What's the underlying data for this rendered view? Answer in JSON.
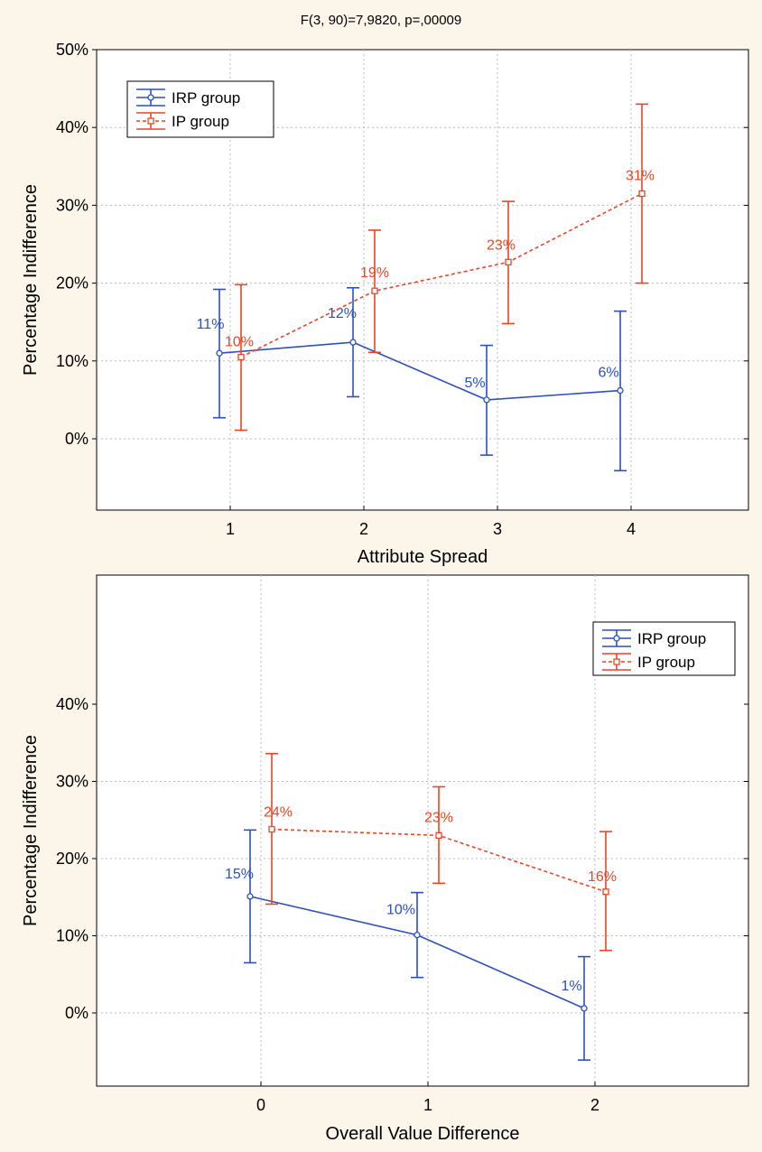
{
  "chart_data": [
    {
      "type": "line",
      "title": "F(3, 90)=7,9820, p=,00009",
      "xlabel": "Attribute Spread",
      "ylabel": "Percentage Indifference",
      "categories": [
        "1",
        "2",
        "3",
        "4"
      ],
      "ylim": [
        -9,
        50
      ],
      "yticks": [
        "0%",
        "10%",
        "20%",
        "30%",
        "40%",
        "50%"
      ],
      "grid": true,
      "legend_position": "top-left",
      "series": [
        {
          "name": "IRP group",
          "color": "#2b4fc4",
          "style": "solid",
          "marker": "circle",
          "values": [
            11,
            12.4,
            5,
            6.2
          ],
          "lower": [
            2.7,
            5.4,
            -2.1,
            -4.1
          ],
          "upper": [
            19.2,
            19.4,
            12,
            16.4
          ],
          "labels": [
            "11%",
            "12%",
            "5%",
            "6%"
          ]
        },
        {
          "name": "IP group",
          "color": "#ee4422",
          "style": "dashed",
          "marker": "square",
          "values": [
            10.5,
            19,
            22.7,
            31.5
          ],
          "lower": [
            1.1,
            11.1,
            14.8,
            20
          ],
          "upper": [
            19.8,
            26.8,
            30.5,
            43
          ],
          "labels": [
            "10%",
            "19%",
            "23%",
            "31%"
          ]
        }
      ]
    },
    {
      "type": "line",
      "title": "",
      "xlabel": "Overall Value Difference",
      "ylabel": "Percentage Indifference",
      "categories": [
        "0",
        "1",
        "2"
      ],
      "ylim": [
        -7,
        40
      ],
      "yticks": [
        "0%",
        "10%",
        "20%",
        "30%",
        "40%"
      ],
      "grid": true,
      "legend_position": "top-right",
      "series": [
        {
          "name": "IRP group",
          "color": "#2b4fc4",
          "style": "solid",
          "marker": "circle",
          "values": [
            15.1,
            10.1,
            0.6
          ],
          "lower": [
            6.5,
            4.6,
            -6.1
          ],
          "upper": [
            23.7,
            15.6,
            7.3
          ],
          "labels": [
            "15%",
            "10%",
            "1%"
          ]
        },
        {
          "name": "IP group",
          "color": "#ee4422",
          "style": "dashed",
          "marker": "square",
          "values": [
            23.8,
            23,
            15.7
          ],
          "lower": [
            14.1,
            16.8,
            8.1
          ],
          "upper": [
            33.6,
            29.3,
            23.5
          ],
          "labels": [
            "24%",
            "23%",
            "16%"
          ]
        }
      ]
    }
  ]
}
